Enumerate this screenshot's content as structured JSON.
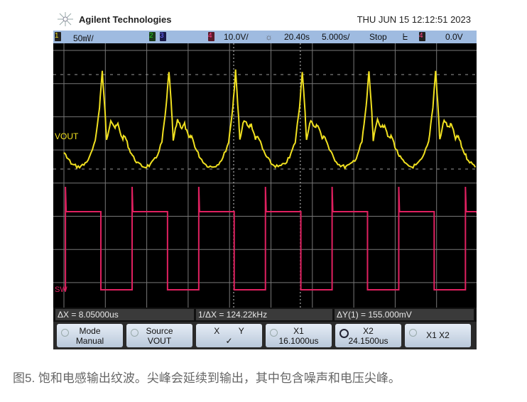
{
  "header": {
    "brand": "Agilent Technologies",
    "datetime": "THU JUN 15 12:12:51 2023"
  },
  "status": {
    "ch1_num": "1",
    "ch1_scale": "50㎷/",
    "ch2_num": "2",
    "ch3_num": "3",
    "ch4_num": "4",
    "ch4_scale": "10.0V/",
    "trigger_pos": "20.40s",
    "timebase": "5.000s/",
    "run_state": "Stop",
    "trig_ch": "4",
    "trig_level": "0.0V",
    "colors": {
      "ch1": "#f0e020",
      "ch2": "#20c020",
      "ch3": "#4040e0",
      "ch4": "#e02060"
    }
  },
  "measurements": {
    "dx": "ΔX = 8.05000us",
    "inv_dx": "1/ΔX = 124.22kHz",
    "dy": "ΔY(1) = 155.000mV"
  },
  "softkeys": [
    {
      "top": "Mode",
      "bottom": "Manual"
    },
    {
      "top": "Source",
      "bottom": "VOUT"
    },
    {
      "top": "X        Y",
      "bottom": "✓"
    },
    {
      "top": "X1",
      "bottom": "16.1000us"
    },
    {
      "top": "X2",
      "bottom": "24.1500us"
    },
    {
      "top": "X1 X2",
      "bottom": ""
    }
  ],
  "caption": "图5. 饱和电感输出纹波。尖峰会延续到输出，其中包含噪声和电压尖峰。",
  "chart_data": {
    "type": "line",
    "xlabel": "",
    "ylabel": "",
    "grid": true,
    "timebase_us_per_div": 5,
    "period_us": 8.05,
    "cursors_us": {
      "x1": 16.1,
      "x2": 24.15
    },
    "series": [
      {
        "name": "VOUT",
        "color": "#f0e020",
        "volts_per_div": 0.05,
        "ripple_pp_mV": 155
      },
      {
        "name": "SW",
        "color": "#e02060",
        "volts_per_div": 10
      }
    ]
  }
}
